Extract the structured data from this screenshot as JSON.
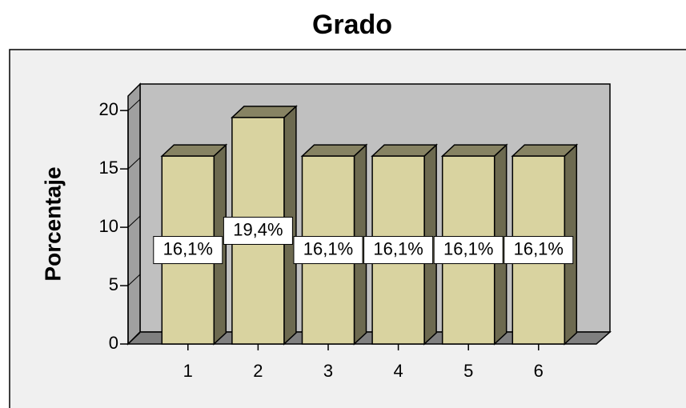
{
  "chart_data": {
    "type": "bar3d",
    "title": "Grado",
    "ylabel": "Porcentaje",
    "categories": [
      "1",
      "2",
      "3",
      "4",
      "5",
      "6"
    ],
    "values": [
      16.1,
      19.4,
      16.1,
      16.1,
      16.1,
      16.1
    ],
    "value_labels": [
      "16,1%",
      "19,4%",
      "16,1%",
      "16,1%",
      "16,1%",
      "16,1%"
    ],
    "color": "#d9d3a0",
    "ylim": [
      0,
      22
    ],
    "yticks": [
      0,
      5,
      10,
      15,
      20
    ],
    "grid": false
  }
}
